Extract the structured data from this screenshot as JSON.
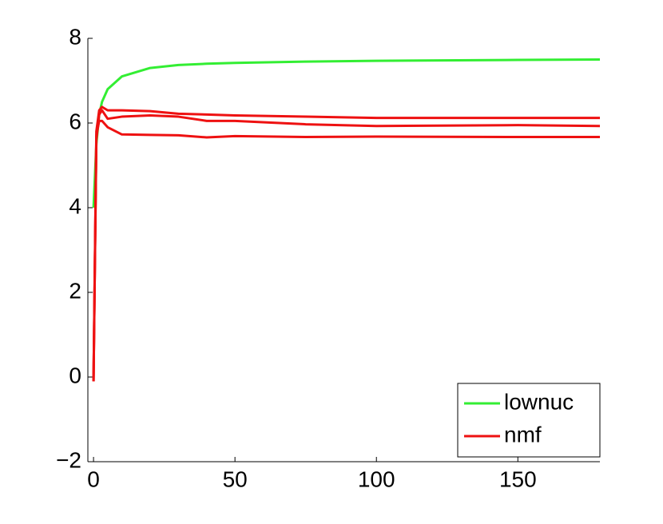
{
  "chart_data": {
    "type": "line",
    "x": [
      0,
      1,
      2,
      3,
      5,
      10,
      20,
      30,
      40,
      50,
      75,
      100,
      150,
      179
    ],
    "series": [
      {
        "name": "lownuc",
        "color": "#33ee33",
        "values": [
          4,
          5.5,
          6.2,
          6.5,
          6.8,
          7.1,
          7.3,
          7.37,
          7.4,
          7.42,
          7.45,
          7.47,
          7.49,
          7.5
        ]
      },
      {
        "name": "nmf",
        "color": "#ee1111",
        "values": [
          -0.1,
          5.8,
          6.3,
          6.38,
          6.3,
          6.3,
          6.28,
          6.22,
          6.2,
          6.18,
          6.15,
          6.12,
          6.12,
          6.12
        ]
      },
      {
        "color": "#ee1111",
        "values": [
          -0.1,
          5.6,
          6.2,
          6.3,
          6.1,
          6.15,
          6.18,
          6.15,
          6.05,
          6.05,
          5.97,
          5.93,
          5.95,
          5.93
        ]
      },
      {
        "color": "#ee1111",
        "values": [
          -0.1,
          5.7,
          6.05,
          6.05,
          5.9,
          5.73,
          5.72,
          5.71,
          5.66,
          5.69,
          5.67,
          5.68,
          5.67,
          5.67
        ]
      }
    ],
    "xlim": [
      -2,
      179
    ],
    "xticks": [
      0,
      50,
      100,
      150
    ],
    "ylim": [
      -2,
      8
    ],
    "yticks": [
      {
        "value": -2,
        "label": "−2"
      },
      0,
      2,
      4,
      6,
      8
    ],
    "grid": false,
    "legend": "lower right"
  }
}
